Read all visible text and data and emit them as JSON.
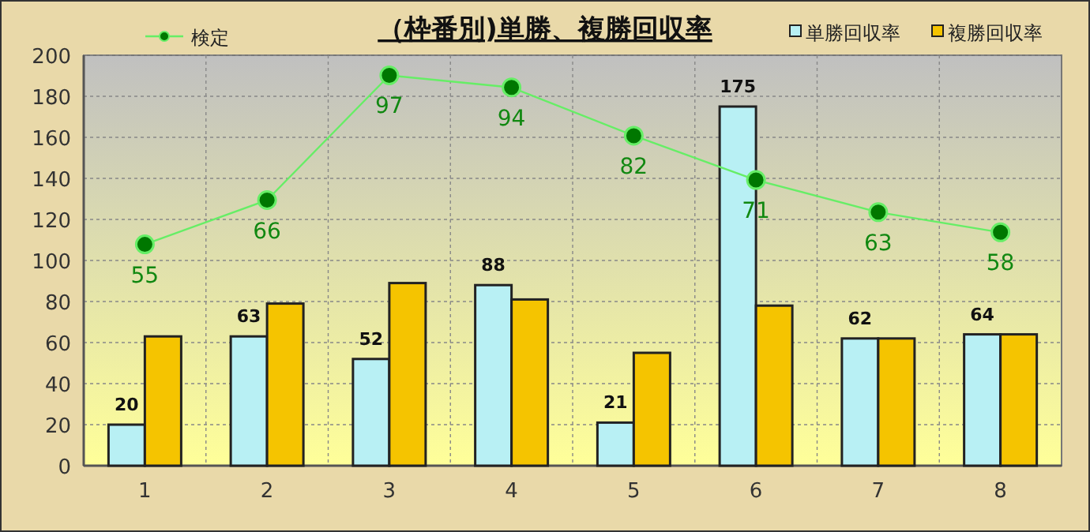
{
  "chart_data": {
    "type": "bar",
    "title": "（枠番別)単勝、複勝回収率",
    "categories": [
      "1",
      "2",
      "3",
      "4",
      "5",
      "6",
      "7",
      "8"
    ],
    "series": [
      {
        "name": "単勝回収率",
        "color": "#b8f0f4",
        "values": [
          20,
          63,
          52,
          88,
          21,
          175,
          62,
          64
        ],
        "value_labels": [
          "20",
          "63",
          "52",
          "88",
          "21",
          "175",
          "62",
          "64"
        ]
      },
      {
        "name": "複勝回収率",
        "color": "#f5c400",
        "values": [
          63,
          79,
          89,
          81,
          55,
          78,
          62,
          64
        ]
      },
      {
        "name": "検定",
        "type": "line",
        "axis": "y2",
        "color": "#66ee66",
        "marker": "circle",
        "values": [
          55,
          66,
          97,
          94,
          82,
          71,
          63,
          58
        ],
        "value_labels": [
          "55",
          "66",
          "97",
          "94",
          "82",
          "71",
          "63",
          "58"
        ]
      }
    ],
    "ylim": [
      0,
      200
    ],
    "yticks": [
      0,
      20,
      40,
      60,
      80,
      100,
      120,
      140,
      160,
      180,
      200
    ],
    "y2lim": [
      0,
      102
    ],
    "grid": true,
    "legend": "top"
  }
}
